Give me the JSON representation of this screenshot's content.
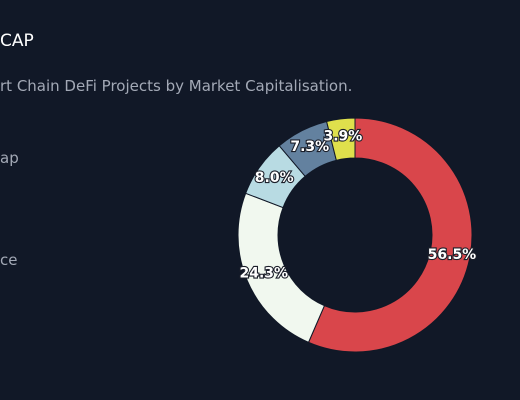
{
  "header": {
    "title": "CAP",
    "subtitle": "rt Chain DeFi Projects by Market Capitalisation."
  },
  "legend_fragments": [
    "ap",
    "ce"
  ],
  "chart_data": {
    "type": "pie",
    "donut": true,
    "title": "CAP",
    "subtitle": "rt Chain DeFi Projects by Market Capitalisation.",
    "slices": [
      {
        "value": 56.5,
        "label": "56.5%",
        "color": "#d9464b"
      },
      {
        "value": 24.3,
        "label": "24.3%",
        "color": "#f1f8ef"
      },
      {
        "value": 8.0,
        "label": "8.0%",
        "color": "#b8dbe3"
      },
      {
        "value": 7.3,
        "label": "7.3%",
        "color": "#63819f"
      },
      {
        "value": 3.9,
        "label": "3.9%",
        "color": "#dfe04c"
      }
    ],
    "start_angle_deg": 0,
    "direction": "clockwise"
  }
}
